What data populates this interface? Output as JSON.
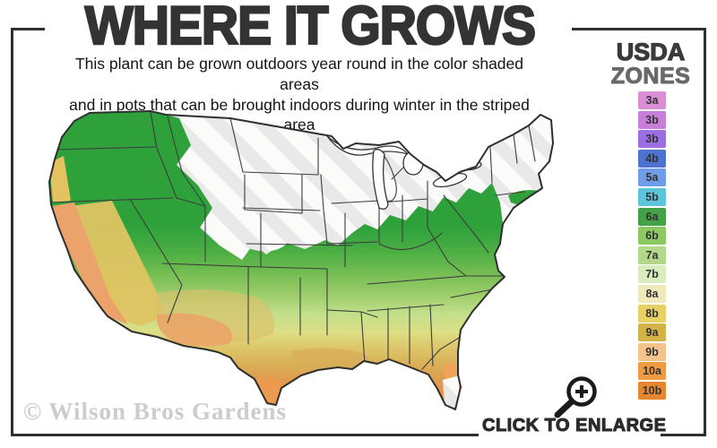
{
  "header": {
    "title": "WHERE IT GROWS",
    "subtitle_line1": "This plant can be grown outdoors year round in the color shaded areas",
    "subtitle_line2": "and in pots that can be brought indoors during winter in the striped area"
  },
  "legend": {
    "title_line1": "USDA",
    "title_line2": "ZONES",
    "zones": [
      {
        "label": "3a",
        "color": "#d98ed6"
      },
      {
        "label": "3b",
        "color": "#c77fd9"
      },
      {
        "label": "3b",
        "color": "#9c6ee3"
      },
      {
        "label": "4b",
        "color": "#4d72d0"
      },
      {
        "label": "5a",
        "color": "#6f9de8"
      },
      {
        "label": "5b",
        "color": "#5cc5dc"
      },
      {
        "label": "6a",
        "color": "#43a247"
      },
      {
        "label": "6b",
        "color": "#8cc863"
      },
      {
        "label": "7a",
        "color": "#b3d889"
      },
      {
        "label": "7b",
        "color": "#d9ecbd"
      },
      {
        "label": "8a",
        "color": "#efe9bb"
      },
      {
        "label": "8b",
        "color": "#e7d165"
      },
      {
        "label": "9a",
        "color": "#d3b348"
      },
      {
        "label": "9b",
        "color": "#f4c38b"
      },
      {
        "label": "10a",
        "color": "#f09a41"
      },
      {
        "label": "10b",
        "color": "#e8862f"
      }
    ]
  },
  "map": {
    "watermark": "© Wilson Bros Gardens",
    "striped_area_meaning": "grow in pots, bring indoors during winter",
    "shaded_area_meaning": "grow outdoors year round",
    "colors": {
      "zone_band_green": "#2ea13b",
      "zone_band_yellow": "#e0c463",
      "zone_band_orange": "#ec9248",
      "unshaded_white": "#fbfbfa",
      "stripe_gray": "#e8e8e8",
      "state_border": "#3d3d3d",
      "frame": "#2f2f2f"
    }
  },
  "footer": {
    "enlarge_label": "CLICK TO ENLARGE",
    "magnifier_icon": "magnifier-plus"
  }
}
